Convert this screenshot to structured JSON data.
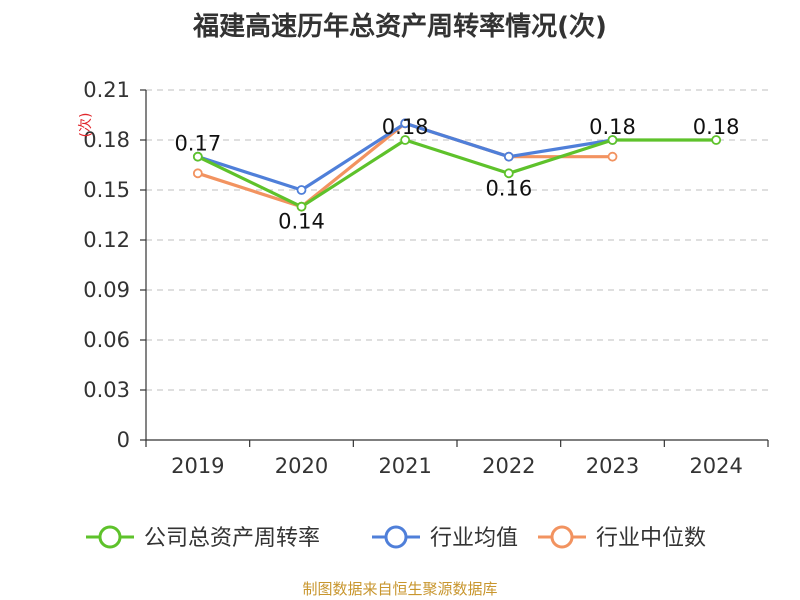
{
  "title": "福建高速历年总资产周转率情况(次)",
  "source": "制图数据来自恒生聚源数据库",
  "chart_data": {
    "type": "line",
    "title": "福建高速历年总资产周转率情况(次)",
    "ylabel": "(次)",
    "xlabel": "",
    "categories": [
      "2019",
      "2020",
      "2021",
      "2022",
      "2023",
      "2024"
    ],
    "ylim": [
      0,
      0.21
    ],
    "yticks": [
      0,
      0.03,
      0.06,
      0.09,
      0.12,
      0.15,
      0.18,
      0.21
    ],
    "ytick_labels": [
      "0",
      "0.03",
      "0.06",
      "0.09",
      "0.12",
      "0.15",
      "0.18",
      "0.21"
    ],
    "grid": true,
    "legend_position": "bottom",
    "series": [
      {
        "name": "公司总资产周转率",
        "color": "#5ec22b",
        "values": [
          0.17,
          0.14,
          0.18,
          0.16,
          0.18,
          0.18
        ],
        "labels": [
          "0.17",
          "0.14",
          "0.18",
          "0.16",
          "0.18",
          "0.18"
        ]
      },
      {
        "name": "行业均值",
        "color": "#4f7fd9",
        "values": [
          0.17,
          0.15,
          0.19,
          0.17,
          0.18,
          null
        ]
      },
      {
        "name": "行业中位数",
        "color": "#f29360",
        "values": [
          0.16,
          0.14,
          0.19,
          0.17,
          0.17,
          null
        ]
      }
    ]
  }
}
